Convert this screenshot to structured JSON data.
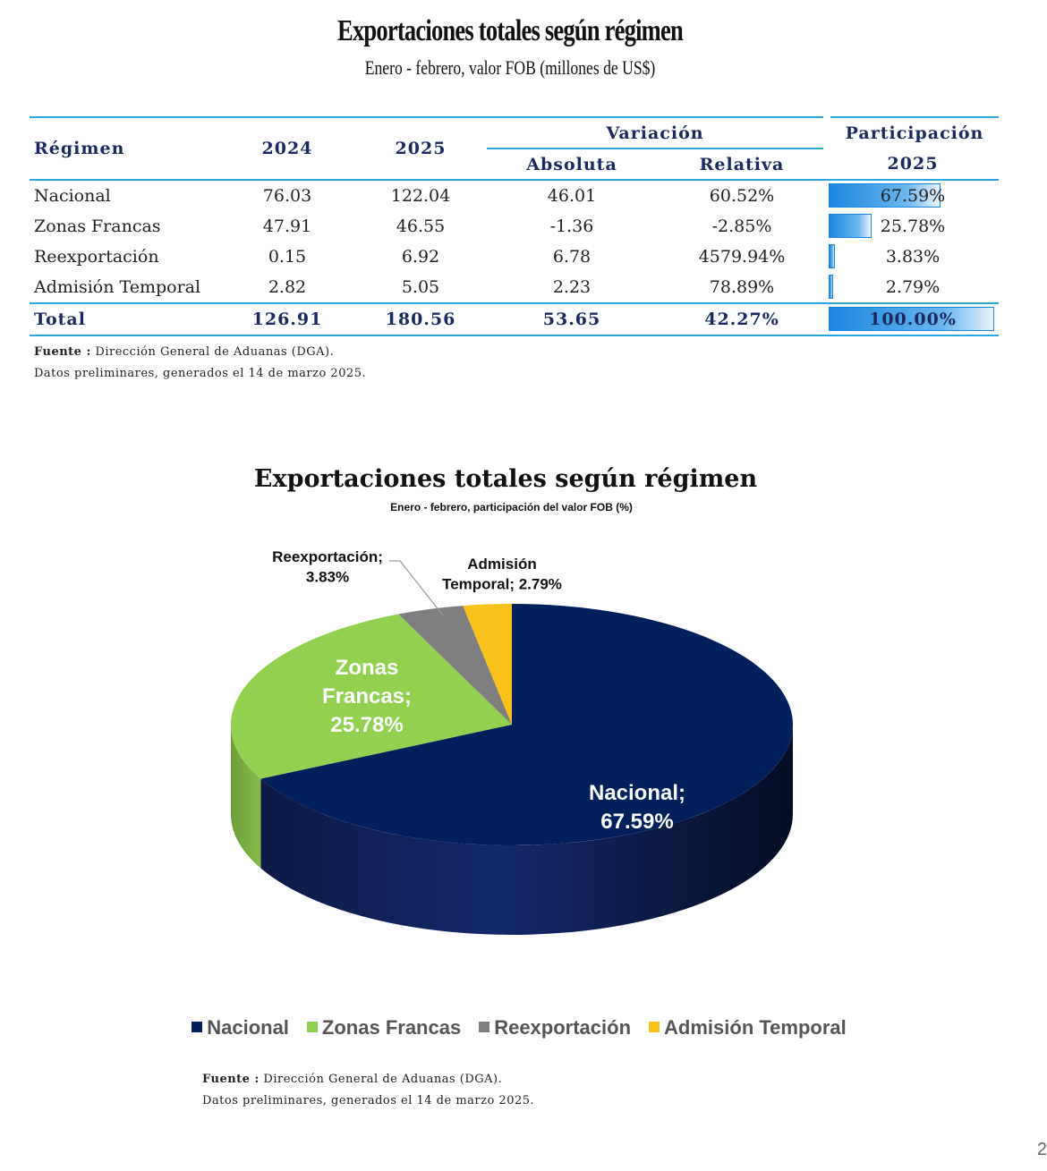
{
  "table_title": "Exportaciones totales según régimen",
  "table_subtitle": "Enero - febrero, valor FOB (millones de US$)",
  "table": {
    "headers": {
      "regimen": "Régimen",
      "y2024": "2024",
      "y2025": "2025",
      "variacion": "Variación",
      "absoluta": "Absoluta",
      "relativa": "Relativa",
      "participacion": "Participación",
      "participacion_year": "2025"
    },
    "rows": [
      {
        "regimen": "Nacional",
        "y2024": "76.03",
        "y2025": "122.04",
        "absoluta": "46.01",
        "relativa": "60.52%",
        "participacion": "67.59%",
        "share": 0.6759
      },
      {
        "regimen": "Zonas Francas",
        "y2024": "47.91",
        "y2025": "46.55",
        "absoluta": "-1.36",
        "relativa": "-2.85%",
        "participacion": "25.78%",
        "share": 0.2578
      },
      {
        "regimen": "Reexportación",
        "y2024": "0.15",
        "y2025": "6.92",
        "absoluta": "6.78",
        "relativa": "4579.94%",
        "participacion": "3.83%",
        "share": 0.0383
      },
      {
        "regimen": "Admisión Temporal",
        "y2024": "2.82",
        "y2025": "5.05",
        "absoluta": "2.23",
        "relativa": "78.89%",
        "participacion": "2.79%",
        "share": 0.0279
      }
    ],
    "total": {
      "regimen": "Total",
      "y2024": "126.91",
      "y2025": "180.56",
      "absoluta": "53.65",
      "relativa": "42.27%",
      "participacion": "100.00%",
      "share": 1.0
    }
  },
  "note1": {
    "label": "Fuente :",
    "text": " Dirección General de Aduanas (DGA).",
    "line2": "Datos preliminares, generados el 14 de marzo 2025."
  },
  "note2": {
    "label": "Fuente :",
    "text": " Dirección General de Aduanas (DGA).",
    "line2": "Datos preliminares, generados el 14 de marzo 2025."
  },
  "chart_data": {
    "type": "pie",
    "title": "Exportaciones totales según régimen",
    "subtitle": "Enero - febrero, participación del valor FOB (%)",
    "slices": [
      {
        "name": "Nacional",
        "value": 67.59,
        "label": "Nacional; 67.59%",
        "color": "#001f5b"
      },
      {
        "name": "Zonas Francas",
        "value": 25.78,
        "label": "Zonas Francas; 25.78%",
        "color": "#92d050"
      },
      {
        "name": "Reexportación",
        "value": 3.83,
        "label": "Reexportación; 3.83%",
        "color": "#7f7f7f"
      },
      {
        "name": "Admisión Temporal",
        "value": 2.79,
        "label": "Admisión Temporal; 2.79%",
        "color": "#f9c21a"
      }
    ],
    "legend": [
      "Nacional",
      "Zonas Francas",
      "Reexportación",
      "Admisión Temporal"
    ],
    "legend_position": "bottom",
    "style": "3d"
  },
  "page_number": "2"
}
